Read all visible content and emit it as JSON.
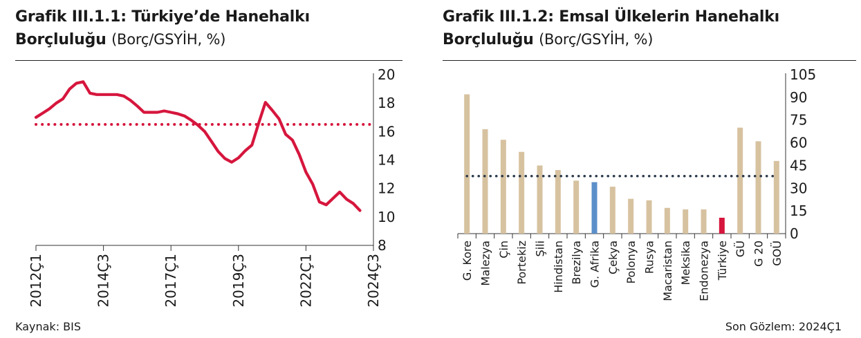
{
  "left_chart": {
    "title_bold_line1": "Grafik III.1.1: Türkiye’de Hanehalkı",
    "title_bold_line2": "Borçluluğu",
    "title_unit": "(Borç/GSYİH, %)"
  },
  "right_chart": {
    "title_bold_line1": "Grafik III.1.2: Emsal Ülkelerin Hanehalkı",
    "title_bold_line2": "Borçluluğu",
    "title_unit": "(Borç/GSYİH, %)"
  },
  "footer": {
    "source": "Kaynak: BIS",
    "last_observation": "Son Gözlem: 2024Ç1"
  },
  "colors": {
    "line_red": "#d6163d",
    "bar_tan": "#d7c2a0",
    "bar_blue": "#5b8fc9",
    "bar_red": "#d6163d",
    "avg_dots": "#2b3a4a"
  },
  "chart_data": [
    {
      "type": "line",
      "title": "Grafik III.1.1: Türkiye’de Hanehalkı Borçluluğu (Borç/GSYİH, %)",
      "x_tick_labels": [
        "2012Ç1",
        "2014Ç3",
        "2017Ç1",
        "2019Ç3",
        "2022Ç1",
        "2024Ç3"
      ],
      "y_tick_labels": [
        "8",
        "10",
        "12",
        "14",
        "16",
        "18",
        "20"
      ],
      "ylim": [
        8,
        20
      ],
      "y_axis_position": "right",
      "grid": false,
      "reference_line": {
        "style": "dotted",
        "value": 16.5
      },
      "series": [
        {
          "x": [
            "2012Ç1",
            "2012Ç2",
            "2012Ç3",
            "2012Ç4",
            "2013Ç1",
            "2013Ç2",
            "2013Ç3",
            "2013Ç4",
            "2014Ç1",
            "2014Ç2",
            "2014Ç3",
            "2014Ç4",
            "2015Ç1",
            "2015Ç2",
            "2015Ç3",
            "2015Ç4",
            "2016Ç1",
            "2016Ç2",
            "2016Ç3",
            "2016Ç4",
            "2017Ç1",
            "2017Ç2",
            "2017Ç3",
            "2017Ç4",
            "2018Ç1",
            "2018Ç2",
            "2018Ç3",
            "2018Ç4",
            "2019Ç1",
            "2019Ç2",
            "2019Ç3",
            "2019Ç4",
            "2020Ç1",
            "2020Ç2",
            "2020Ç3",
            "2020Ç4",
            "2021Ç1",
            "2021Ç2",
            "2021Ç3",
            "2021Ç4",
            "2022Ç1",
            "2022Ç2",
            "2022Ç3",
            "2022Ç4",
            "2023Ç1",
            "2023Ç2",
            "2023Ç3",
            "2023Ç4",
            "2024Ç1"
          ],
          "values": [
            17.0,
            17.3,
            17.6,
            18.0,
            18.3,
            19.0,
            19.4,
            19.5,
            18.7,
            18.6,
            18.6,
            18.6,
            18.6,
            18.5,
            18.2,
            17.8,
            17.35,
            17.35,
            17.35,
            17.45,
            17.35,
            17.25,
            17.1,
            16.8,
            16.45,
            16.0,
            15.3,
            14.6,
            14.1,
            13.85,
            14.15,
            14.65,
            15.05,
            16.6,
            18.05,
            17.5,
            16.9,
            15.8,
            15.4,
            14.4,
            13.15,
            12.3,
            11.05,
            10.85,
            11.3,
            11.75,
            11.25,
            10.95,
            10.45
          ]
        }
      ]
    },
    {
      "type": "bar",
      "title": "Grafik III.1.2: Emsal Ülkelerin Hanehalkı Borçluluğu (Borç/GSYİH, %)",
      "categories": [
        "G. Kore",
        "Malezya",
        "Çin",
        "Portekiz",
        "Şili",
        "Hindistan",
        "Brezilya",
        "G. Afrika",
        "Çekya",
        "Polonya",
        "Rusya",
        "Macaristan",
        "Meksika",
        "Endonezya",
        "Türkiye",
        "GÜ",
        "G 20",
        "GOÜ"
      ],
      "values": [
        92,
        69,
        62,
        54,
        45,
        42,
        35,
        34,
        31,
        23,
        22,
        17,
        16,
        16,
        10.5,
        70,
        61,
        48
      ],
      "highlight": {
        "G. Afrika": "blue",
        "Türkiye": "red"
      },
      "ylim": [
        0,
        105
      ],
      "y_tick_labels": [
        "0",
        "15",
        "30",
        "45",
        "60",
        "75",
        "90",
        "105"
      ],
      "y_axis_position": "right",
      "grid": false,
      "reference_line": {
        "style": "dotted",
        "value": 38
      }
    }
  ]
}
